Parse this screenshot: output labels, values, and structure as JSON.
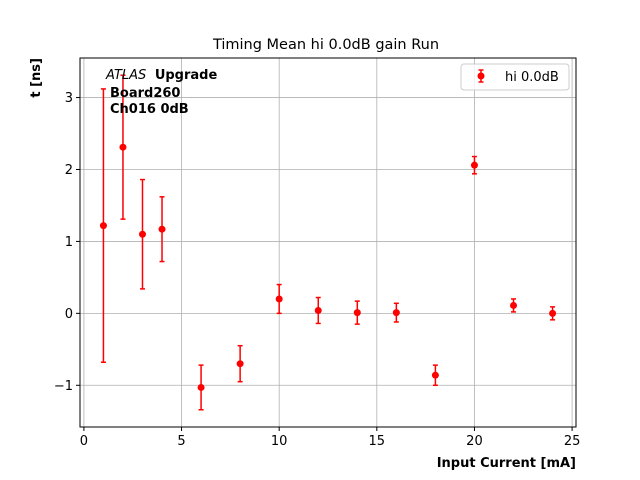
{
  "chart_data": {
    "type": "scatter",
    "title": "Timing Mean hi 0.0dB gain Run",
    "xlabel": "Input Current [mA]",
    "ylabel": "t [ns]",
    "xlim": [
      -0.2,
      25.2
    ],
    "ylim": [
      -1.58,
      3.55
    ],
    "xticks": [
      0,
      5,
      10,
      15,
      20,
      25
    ],
    "yticks": [
      -1,
      0,
      1,
      2,
      3
    ],
    "xtick_labels": [
      "0",
      "5",
      "10",
      "15",
      "20",
      "25"
    ],
    "ytick_labels": [
      "−1",
      "0",
      "1",
      "2",
      "3"
    ],
    "grid": true,
    "legend_position": "top-right",
    "annotation": {
      "atlas": "ATLAS",
      "upgrade": "Upgrade",
      "line2": "Board260",
      "line3": "Ch016 0dB"
    },
    "series": [
      {
        "name": "hi 0.0dB",
        "color": "#ff0000",
        "marker": "circle",
        "points": [
          {
            "x": 1,
            "y": 1.22,
            "err": 1.9
          },
          {
            "x": 2,
            "y": 2.31,
            "err": 1.0
          },
          {
            "x": 3,
            "y": 1.1,
            "err": 0.76
          },
          {
            "x": 4,
            "y": 1.17,
            "err": 0.45
          },
          {
            "x": 6,
            "y": -1.03,
            "err": 0.31
          },
          {
            "x": 8,
            "y": -0.7,
            "err": 0.25
          },
          {
            "x": 10,
            "y": 0.2,
            "err": 0.2
          },
          {
            "x": 12,
            "y": 0.04,
            "err": 0.18
          },
          {
            "x": 14,
            "y": 0.01,
            "err": 0.16
          },
          {
            "x": 16,
            "y": 0.01,
            "err": 0.13
          },
          {
            "x": 18,
            "y": -0.86,
            "err": 0.14
          },
          {
            "x": 20,
            "y": 2.06,
            "err": 0.12
          },
          {
            "x": 22,
            "y": 0.11,
            "err": 0.09
          },
          {
            "x": 24,
            "y": 0.0,
            "err": 0.09
          }
        ]
      }
    ]
  }
}
